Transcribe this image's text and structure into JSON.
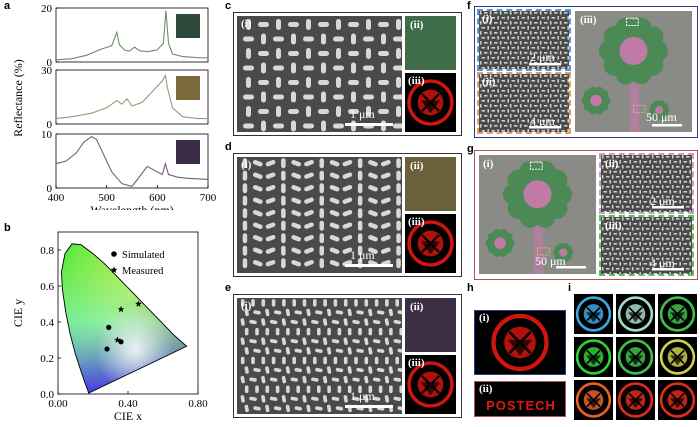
{
  "panels": {
    "a": "a",
    "b": "b",
    "c": "c",
    "d": "d",
    "e": "e",
    "f": "f",
    "g": "g",
    "h": "h",
    "i": "i"
  },
  "sub": {
    "i": "(i)",
    "ii": "(ii)",
    "iii": "(iii)"
  },
  "scales": {
    "c": "1 μm",
    "d": "1 μm",
    "e": "1 μm",
    "f_i": "2 μm",
    "f_ii": "4 μm",
    "f_iii": "50 μm",
    "g_i": "50 μm",
    "g_ii": "2 μm",
    "g_iii": "4 μm"
  },
  "h_banner_text": "POSTECH",
  "colors": {
    "sem_gray": "#4a4a4a",
    "red_logo": "#d0140e",
    "green_panel": "#3f6d4a",
    "tan_panel": "#6b5f3c",
    "purple_panel": "#3c2e44",
    "f_border": "#2e3a8c",
    "g_border": "#b55050"
  },
  "chart_data": [
    {
      "type": "line",
      "panel": "a",
      "ylabel": "Reflectance (%)",
      "xlabel": "Wavelength (nm)",
      "xlim": [
        400,
        700
      ],
      "x_ticks": [
        "400",
        "500",
        "600",
        "700"
      ],
      "subplots": [
        {
          "ylim": [
            0,
            20
          ],
          "y_ticks": [
            "0",
            "20"
          ],
          "series": [
            {
              "x": [
                400,
                430,
                460,
                490,
                510,
                520,
                525,
                535,
                545,
                555,
                565,
                580,
                600,
                612,
                617,
                622,
                630,
                650,
                680,
                700
              ],
              "y": [
                0.8,
                1.2,
                2.5,
                4.8,
                6,
                11,
                6.5,
                4.5,
                4,
                5.5,
                4.2,
                3.8,
                4.5,
                7,
                19,
                7,
                3,
                2,
                1.6,
                1.5
              ]
            }
          ]
        },
        {
          "ylim": [
            0,
            30
          ],
          "y_ticks": [
            "0",
            "30"
          ],
          "series": [
            {
              "x": [
                400,
                430,
                470,
                500,
                520,
                530,
                540,
                550,
                570,
                590,
                610,
                616,
                620,
                630,
                650,
                680,
                700
              ],
              "y": [
                3,
                4,
                6,
                9,
                13,
                11,
                14,
                10,
                12,
                18,
                24,
                27,
                20,
                9,
                4,
                3,
                3
              ]
            }
          ]
        },
        {
          "ylim": [
            0,
            10
          ],
          "y_ticks": [
            "0",
            "10"
          ],
          "series": [
            {
              "x": [
                400,
                420,
                440,
                455,
                470,
                480,
                490,
                510,
                530,
                550,
                560,
                580,
                600,
                610,
                616,
                622,
                640,
                660,
                700
              ],
              "y": [
                4.5,
                5,
                6.5,
                8.5,
                9.5,
                9,
                7,
                3,
                0.8,
                0.3,
                1.5,
                4,
                3,
                2.5,
                4.5,
                2.5,
                2,
                1.8,
                1.6
              ]
            }
          ]
        }
      ]
    },
    {
      "type": "scatter",
      "panel": "b",
      "xlabel": "CIE x",
      "ylabel": "CIE y",
      "xlim": [
        0,
        0.8
      ],
      "ylim": [
        0,
        0.9
      ],
      "x_ticks": [
        "0.00",
        "0.40",
        "0.80"
      ],
      "y_ticks": [
        "0.0",
        "0.2",
        "0.4",
        "0.6",
        "0.8"
      ],
      "legend": [
        "Simulated",
        "Measured"
      ],
      "series": [
        {
          "name": "Simulated",
          "x": [
            0.29,
            0.28,
            0.36
          ],
          "y": [
            0.37,
            0.25,
            0.29
          ]
        },
        {
          "name": "Measured",
          "x": [
            0.36,
            0.34,
            0.46
          ],
          "y": [
            0.47,
            0.3,
            0.5
          ]
        }
      ]
    }
  ]
}
